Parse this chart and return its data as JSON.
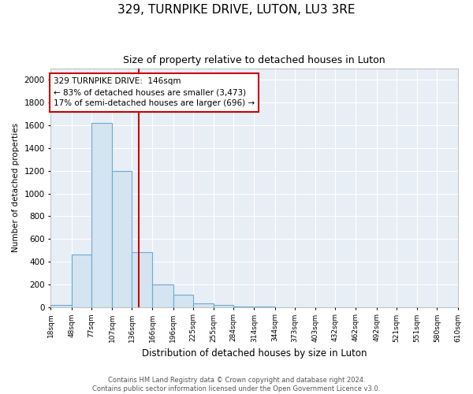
{
  "title": "329, TURNPIKE DRIVE, LUTON, LU3 3RE",
  "subtitle": "Size of property relative to detached houses in Luton",
  "xlabel": "Distribution of detached houses by size in Luton",
  "ylabel": "Number of detached properties",
  "bin_edges": [
    18,
    48,
    77,
    107,
    136,
    166,
    196,
    225,
    255,
    284,
    314,
    344,
    373,
    403,
    432,
    462,
    492,
    521,
    551,
    580,
    610
  ],
  "bin_counts": [
    20,
    460,
    1620,
    1200,
    480,
    200,
    110,
    30,
    20,
    5,
    3,
    0,
    0,
    0,
    0,
    0,
    0,
    0,
    0,
    0
  ],
  "bar_facecolor": "#d4e4f0",
  "bar_edgecolor": "#6aaad4",
  "vline_x": 146,
  "vline_color": "#cc0000",
  "annotation_text": "329 TURNPIKE DRIVE:  146sqm\n← 83% of detached houses are smaller (3,473)\n17% of semi-detached houses are larger (696) →",
  "annotation_box_edgecolor": "#cc0000",
  "annotation_box_facecolor": "white",
  "ylim": [
    0,
    2100
  ],
  "yticks": [
    0,
    200,
    400,
    600,
    800,
    1000,
    1200,
    1400,
    1600,
    1800,
    2000
  ],
  "footnote1": "Contains HM Land Registry data © Crown copyright and database right 2024.",
  "footnote2": "Contains public sector information licensed under the Open Government Licence v3.0.",
  "bg_color": "#ffffff",
  "plot_bg_color": "#e8eef5",
  "grid_color": "#ffffff",
  "title_fontsize": 11,
  "subtitle_fontsize": 9,
  "xlabel_fontsize": 8.5,
  "ylabel_fontsize": 7.5,
  "xtick_fontsize": 6.5,
  "ytick_fontsize": 7.5,
  "annotation_fontsize": 7.5,
  "footnote_fontsize": 6.0
}
